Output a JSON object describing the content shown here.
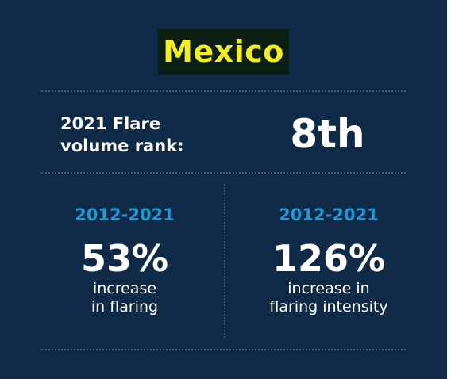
{
  "title": "Mexico",
  "rank": {
    "label_line1": "2021 Flare",
    "label_line2": "volume rank:",
    "value": "8th"
  },
  "stats": [
    {
      "period": "2012-2021",
      "value": "53%",
      "desc_line1": "increase",
      "desc_line2": "in flaring"
    },
    {
      "period": "2012-2021",
      "value": "126%",
      "desc_line1": "increase in",
      "desc_line2": "flaring intensity"
    }
  ],
  "colors": {
    "background": "#0e2a47",
    "title_text": "#f4ee1e",
    "title_highlight": "#0a1e14",
    "period_accent": "#1a9ad6",
    "divider": "#3d5a78"
  }
}
